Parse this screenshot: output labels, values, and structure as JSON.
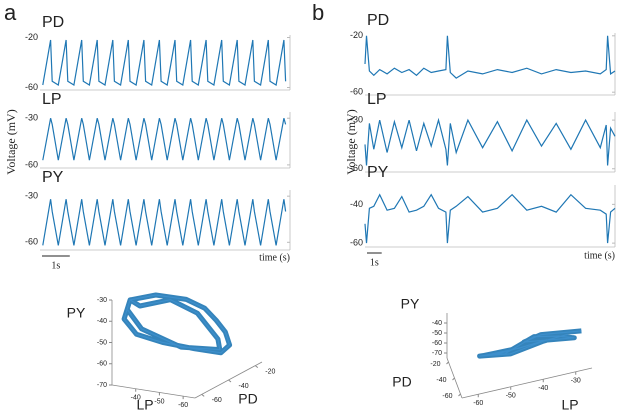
{
  "figure": {
    "panels": [
      {
        "label": "a",
        "ylabel": "Voltage (mV)",
        "xlabel": "time (s)",
        "scale_bar": {
          "value": 1,
          "label": "1s"
        }
      },
      {
        "label": "b",
        "ylabel": "Voltage (mV)",
        "xlabel": "time (s)",
        "scale_bar": {
          "value": 1,
          "label": "1s"
        }
      }
    ]
  },
  "chart_data": [
    {
      "type": "line",
      "title": "PD",
      "color": "#1f77b4",
      "xlim": [
        0,
        9
      ],
      "ylim": [
        -62,
        -18
      ],
      "yticks": [
        -60,
        -20
      ],
      "x": [
        0.1,
        0.38,
        0.44,
        0.66,
        0.94,
        1.0,
        1.22,
        1.5,
        1.56,
        1.78,
        2.06,
        2.12,
        2.34,
        2.62,
        2.68,
        2.9,
        3.18,
        3.24,
        3.46,
        3.74,
        3.8,
        4.02,
        4.3,
        4.36,
        4.58,
        4.86,
        4.92,
        5.14,
        5.42,
        5.48,
        5.7,
        5.98,
        6.04,
        6.26,
        6.54,
        6.6,
        6.82,
        7.1,
        7.16,
        7.38,
        7.66,
        7.72,
        7.94,
        8.22,
        8.28,
        8.5,
        8.78,
        8.84
      ],
      "values": [
        -58,
        -22,
        -55,
        -58,
        -22,
        -55,
        -58,
        -22,
        -55,
        -58,
        -22,
        -55,
        -58,
        -22,
        -55,
        -58,
        -22,
        -55,
        -58,
        -22,
        -55,
        -58,
        -22,
        -55,
        -58,
        -22,
        -55,
        -58,
        -22,
        -55,
        -58,
        -22,
        -55,
        -58,
        -22,
        -55,
        -58,
        -22,
        -55,
        -58,
        -22,
        -55,
        -58,
        -22,
        -55,
        -58,
        -22,
        -55
      ]
    },
    {
      "type": "line",
      "title": "LP",
      "color": "#1f77b4",
      "xlim": [
        0,
        9
      ],
      "ylim": [
        -62,
        -26
      ],
      "yticks": [
        -60,
        -30
      ],
      "x": [
        0.1,
        0.38,
        0.44,
        0.66,
        0.94,
        1.0,
        1.22,
        1.5,
        1.56,
        1.78,
        2.06,
        2.12,
        2.34,
        2.62,
        2.68,
        2.9,
        3.18,
        3.24,
        3.46,
        3.74,
        3.8,
        4.02,
        4.3,
        4.36,
        4.58,
        4.86,
        4.92,
        5.14,
        5.42,
        5.48,
        5.7,
        5.98,
        6.04,
        6.26,
        6.54,
        6.6,
        6.82,
        7.1,
        7.16,
        7.38,
        7.66,
        7.72,
        7.94,
        8.22,
        8.28,
        8.5,
        8.78,
        8.84
      ],
      "values": [
        -57,
        -30,
        -34,
        -57,
        -30,
        -34,
        -57,
        -30,
        -34,
        -57,
        -30,
        -34,
        -57,
        -30,
        -34,
        -57,
        -30,
        -34,
        -57,
        -30,
        -34,
        -57,
        -30,
        -34,
        -57,
        -30,
        -34,
        -57,
        -30,
        -34,
        -57,
        -30,
        -34,
        -57,
        -30,
        -34,
        -57,
        -30,
        -34,
        -57,
        -30,
        -34,
        -57,
        -30,
        -34,
        -57,
        -30,
        -34
      ]
    },
    {
      "type": "line",
      "title": "PY",
      "color": "#1f77b4",
      "xlim": [
        0,
        9
      ],
      "ylim": [
        -65,
        -26
      ],
      "yticks": [
        -60,
        -30
      ],
      "x": [
        0.1,
        0.38,
        0.44,
        0.66,
        0.94,
        1.0,
        1.22,
        1.5,
        1.56,
        1.78,
        2.06,
        2.12,
        2.34,
        2.62,
        2.68,
        2.9,
        3.18,
        3.24,
        3.46,
        3.74,
        3.8,
        4.02,
        4.3,
        4.36,
        4.58,
        4.86,
        4.92,
        5.14,
        5.42,
        5.48,
        5.7,
        5.98,
        6.04,
        6.26,
        6.54,
        6.6,
        6.82,
        7.1,
        7.16,
        7.38,
        7.66,
        7.72,
        7.94,
        8.22,
        8.28,
        8.5,
        8.78,
        8.84
      ],
      "values": [
        -62,
        -32,
        -40,
        -62,
        -32,
        -40,
        -62,
        -32,
        -40,
        -62,
        -32,
        -40,
        -62,
        -32,
        -40,
        -62,
        -32,
        -40,
        -62,
        -32,
        -40,
        -62,
        -32,
        -40,
        -62,
        -32,
        -40,
        -62,
        -32,
        -40,
        -62,
        -32,
        -40,
        -62,
        -32,
        -40,
        -62,
        -32,
        -40,
        -62,
        -32,
        -40,
        -62,
        -32,
        -40,
        -62,
        -32,
        -40
      ]
    },
    {
      "type": "line",
      "title": "PD",
      "color": "#1f77b4",
      "xlim": [
        0,
        17
      ],
      "ylim": [
        -62,
        -18
      ],
      "yticks": [
        -60,
        -20
      ],
      "x": [
        0,
        0.1,
        0.3,
        0.6,
        1,
        1.5,
        2,
        2.5,
        3,
        3.5,
        4,
        4.5,
        5,
        5.5,
        5.6,
        5.8,
        6.2,
        7,
        8,
        9,
        10,
        11,
        12,
        13,
        14,
        15,
        16,
        16.4,
        16.5,
        16.7,
        17
      ],
      "values": [
        -40,
        -20,
        -45,
        -48,
        -44,
        -47,
        -43,
        -46,
        -44,
        -48,
        -43,
        -46,
        -45,
        -44,
        -20,
        -46,
        -50,
        -45,
        -47,
        -44,
        -46,
        -43,
        -47,
        -44,
        -46,
        -45,
        -47,
        -44,
        -20,
        -47,
        -45
      ]
    },
    {
      "type": "line",
      "title": "LP",
      "color": "#1f77b4",
      "xlim": [
        0,
        17
      ],
      "ylim": [
        -62,
        -25
      ],
      "yticks": [
        -60,
        -30
      ],
      "x": [
        0,
        0.1,
        0.3,
        0.6,
        1,
        1.5,
        2,
        2.5,
        3,
        3.5,
        4,
        4.5,
        5,
        5.5,
        5.6,
        5.8,
        6.2,
        7,
        8,
        9,
        10,
        11,
        12,
        13,
        14,
        15,
        16,
        16.4,
        16.5,
        16.7,
        17
      ],
      "values": [
        -45,
        -58,
        -32,
        -48,
        -30,
        -50,
        -31,
        -47,
        -30,
        -49,
        -32,
        -46,
        -30,
        -48,
        -58,
        -32,
        -50,
        -30,
        -47,
        -31,
        -49,
        -30,
        -46,
        -32,
        -48,
        -30,
        -47,
        -33,
        -58,
        -35,
        -40
      ]
    },
    {
      "type": "line",
      "title": "PY",
      "color": "#1f77b4",
      "xlim": [
        0,
        17
      ],
      "ylim": [
        -62,
        -30
      ],
      "yticks": [
        -60,
        -40
      ],
      "x": [
        0,
        0.1,
        0.3,
        0.6,
        1,
        1.5,
        2,
        2.5,
        3,
        3.5,
        4,
        4.5,
        5,
        5.5,
        5.6,
        5.8,
        6.2,
        7,
        8,
        9,
        10,
        11,
        12,
        13,
        14,
        15,
        16,
        16.4,
        16.5,
        16.7,
        17
      ],
      "values": [
        -50,
        -60,
        -42,
        -41,
        -35,
        -43,
        -42,
        -36,
        -44,
        -43,
        -41,
        -35,
        -42,
        -44,
        -60,
        -43,
        -41,
        -36,
        -44,
        -42,
        -35,
        -43,
        -41,
        -44,
        -35,
        -42,
        -43,
        -45,
        -60,
        -44,
        -42
      ]
    },
    {
      "type": "line3d",
      "xlabel": "LP",
      "ylabel": "PD",
      "zlabel": "PY",
      "color": "#1f77b4",
      "xlim": [
        -65,
        -30
      ],
      "ylim": [
        -65,
        -15
      ],
      "zlim": [
        -70,
        -30
      ],
      "xticks": [
        -60,
        -50,
        -40
      ],
      "yticks": [
        -60,
        -40,
        -20
      ],
      "zticks": [
        -70,
        -60,
        -50,
        -40,
        -30
      ],
      "x": [
        -32,
        -40,
        -50,
        -55,
        -57,
        -58,
        -57,
        -55,
        -48,
        -40,
        -33,
        -30,
        -32,
        -35,
        -45,
        -53,
        -56,
        -54,
        -45,
        -34,
        -31
      ],
      "y": [
        -55,
        -50,
        -45,
        -40,
        -35,
        -30,
        -25,
        -28,
        -35,
        -45,
        -52,
        -56,
        -55,
        -53,
        -48,
        -42,
        -32,
        -27,
        -40,
        -50,
        -55
      ],
      "z": [
        -33,
        -31,
        -33,
        -38,
        -45,
        -52,
        -60,
        -63,
        -60,
        -55,
        -50,
        -42,
        -33,
        -36,
        -33,
        -40,
        -55,
        -62,
        -58,
        -48,
        -38
      ]
    },
    {
      "type": "line3d",
      "xlabel": "LP",
      "ylabel": "PD",
      "zlabel": "PY",
      "color": "#1f77b4",
      "xlim": [
        -65,
        -25
      ],
      "ylim": [
        -65,
        -15
      ],
      "zlim": [
        -75,
        -30
      ],
      "xticks": [
        -60,
        -50,
        -40,
        -30
      ],
      "yticks": [
        -60,
        -40,
        -20
      ],
      "zticks": [
        -70,
        -60,
        -50,
        -40
      ],
      "x": [
        -28,
        -40,
        -45,
        -30,
        -35,
        -42,
        -50,
        -55,
        -52,
        -45,
        -38,
        -48,
        -56,
        -50,
        -32
      ],
      "y": [
        -62,
        -58,
        -55,
        -60,
        -62,
        -56,
        -45,
        -30,
        -28,
        -40,
        -55,
        -42,
        -26,
        -35,
        -60
      ],
      "z": [
        -38,
        -36,
        -42,
        -45,
        -38,
        -38,
        -58,
        -68,
        -70,
        -60,
        -45,
        -62,
        -71,
        -65,
        -40
      ]
    }
  ]
}
